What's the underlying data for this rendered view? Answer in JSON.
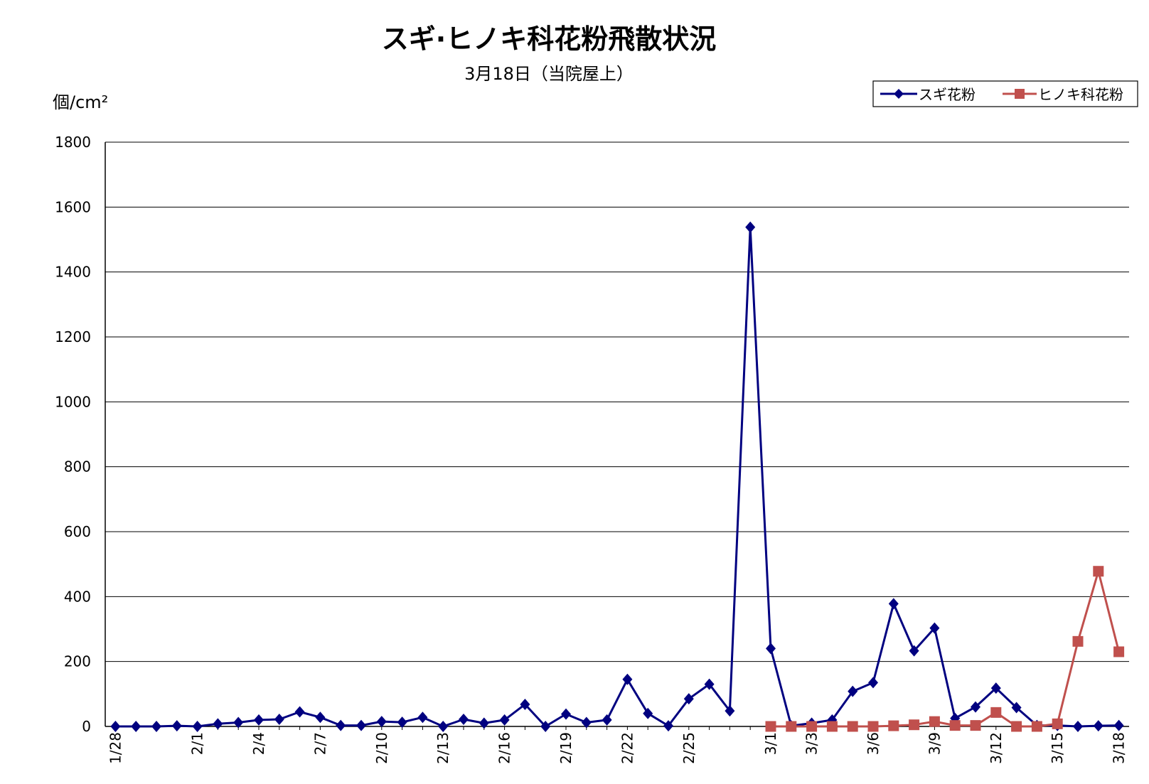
{
  "chart_data": {
    "type": "line",
    "title": "スギ·ヒノキ科花粉飛散状況",
    "subtitle": "3月18日（当院屋上）",
    "ylabel": "個/cm²",
    "xlabel": "",
    "ylim": [
      0,
      1800
    ],
    "yticks": [
      0,
      200,
      400,
      600,
      800,
      1000,
      1200,
      1400,
      1600,
      1800
    ],
    "grid": true,
    "legend_position": "top-right",
    "x": [
      "1/28",
      "1/29",
      "1/30",
      "1/31",
      "2/1",
      "2/2",
      "2/3",
      "2/4",
      "2/5",
      "2/6",
      "2/7",
      "2/8",
      "2/9",
      "2/10",
      "2/11",
      "2/12",
      "2/13",
      "2/14",
      "2/15",
      "2/16",
      "2/17",
      "2/18",
      "2/19",
      "2/20",
      "2/21",
      "2/22",
      "2/23",
      "2/24",
      "2/25",
      "2/26",
      "2/27",
      "2/28",
      "3/1",
      "3/2",
      "3/3",
      "3/4",
      "3/5",
      "3/6",
      "3/7",
      "3/8",
      "3/9",
      "3/10",
      "3/11",
      "3/12",
      "3/13",
      "3/14",
      "3/15",
      "3/16",
      "3/17",
      "3/18"
    ],
    "x_tick_labels": [
      "1/28",
      "2/1",
      "2/4",
      "2/7",
      "2/10",
      "2/13",
      "2/16",
      "2/19",
      "2/22",
      "2/25",
      "3/1",
      "3/3",
      "3/6",
      "3/9",
      "3/12",
      "3/15",
      "3/18"
    ],
    "series": [
      {
        "name": "スギ花粉",
        "color": "#000080",
        "marker": "diamond",
        "values": [
          0,
          0,
          0,
          2,
          0,
          8,
          12,
          20,
          22,
          45,
          28,
          3,
          3,
          15,
          13,
          28,
          0,
          22,
          10,
          20,
          68,
          0,
          38,
          12,
          20,
          145,
          40,
          2,
          85,
          130,
          48,
          1538,
          240,
          2,
          10,
          20,
          108,
          135,
          378,
          233,
          303,
          25,
          60,
          118,
          58,
          3,
          3,
          0,
          2,
          3
        ]
      },
      {
        "name": "ヒノキ科花粉",
        "color": "#c0504d",
        "marker": "square",
        "values": [
          null,
          null,
          null,
          null,
          null,
          null,
          null,
          null,
          null,
          null,
          null,
          null,
          null,
          null,
          null,
          null,
          null,
          null,
          null,
          null,
          null,
          null,
          null,
          null,
          null,
          null,
          null,
          null,
          null,
          null,
          null,
          null,
          0,
          0,
          0,
          0,
          0,
          0,
          2,
          5,
          15,
          3,
          3,
          43,
          0,
          0,
          8,
          262,
          478,
          230
        ]
      }
    ]
  }
}
